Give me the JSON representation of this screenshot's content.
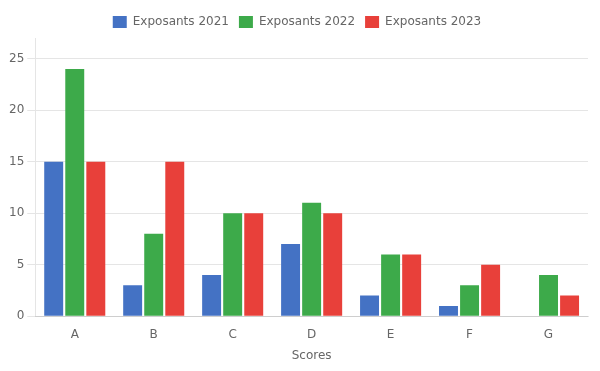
{
  "chart_data": {
    "type": "bar",
    "xlabel": "Scores",
    "categories": [
      "A",
      "B",
      "C",
      "D",
      "E",
      "F",
      "G"
    ],
    "series": [
      {
        "name": "Exposants 2021",
        "color": "#4472C4",
        "values": [
          15,
          3,
          4,
          7,
          2,
          1,
          0
        ]
      },
      {
        "name": "Exposants 2022",
        "color": "#3DAA4A",
        "values": [
          24,
          8,
          10,
          11,
          6,
          3,
          4
        ]
      },
      {
        "name": "Exposants 2023",
        "color": "#E8403A",
        "values": [
          15,
          15,
          10,
          10,
          6,
          5,
          2
        ]
      }
    ],
    "ylim": [
      0,
      27
    ],
    "yticks": [
      0,
      5,
      10,
      15,
      20,
      25
    ],
    "grid": true,
    "legend": "top"
  }
}
